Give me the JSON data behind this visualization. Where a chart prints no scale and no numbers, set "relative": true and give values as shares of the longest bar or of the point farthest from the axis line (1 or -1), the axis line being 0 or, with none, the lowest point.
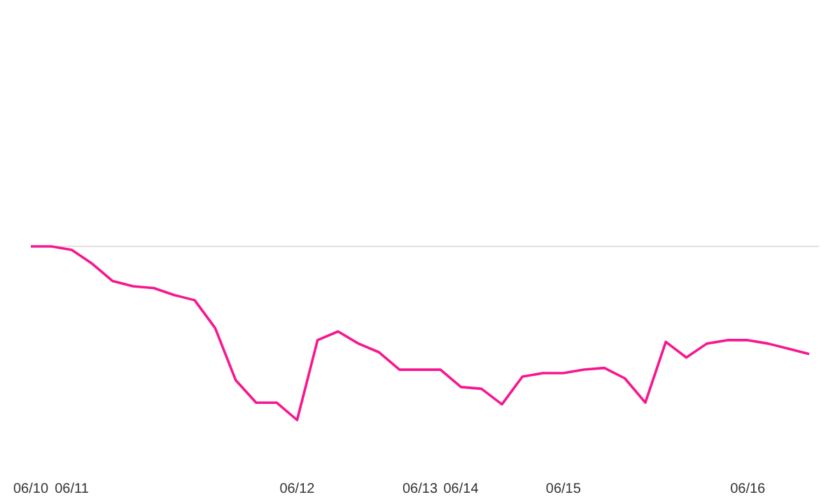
{
  "chart_data": {
    "type": "line",
    "relative": true,
    "categories": [
      "06/10",
      null,
      "06/11",
      null,
      null,
      null,
      null,
      null,
      null,
      null,
      null,
      null,
      null,
      "06/12",
      null,
      null,
      null,
      null,
      null,
      "06/13",
      null,
      "06/14",
      null,
      null,
      null,
      null,
      "06/15",
      null,
      null,
      null,
      null,
      null,
      null,
      null,
      null,
      "06/16",
      null,
      null,
      null
    ],
    "marker": "none",
    "line_style": "solid",
    "ref_lines": [
      {
        "axis": "y",
        "value": 0,
        "color": "#e0e0e0"
      }
    ],
    "series": [
      {
        "color": "#f7168f",
        "values": [
          0,
          0,
          -0.02,
          -0.1,
          -0.2,
          -0.23,
          -0.24,
          -0.28,
          -0.31,
          -0.47,
          -0.77,
          -0.9,
          -0.9,
          -1,
          -0.54,
          -0.49,
          -0.56,
          -0.61,
          -0.71,
          -0.71,
          -0.71,
          -0.81,
          -0.82,
          -0.91,
          -0.75,
          -0.73,
          -0.73,
          -0.71,
          -0.7,
          -0.76,
          -0.9,
          -0.55,
          -0.64,
          -0.56,
          -0.54,
          -0.54,
          -0.56,
          -0.59,
          -0.62
        ]
      }
    ]
  }
}
